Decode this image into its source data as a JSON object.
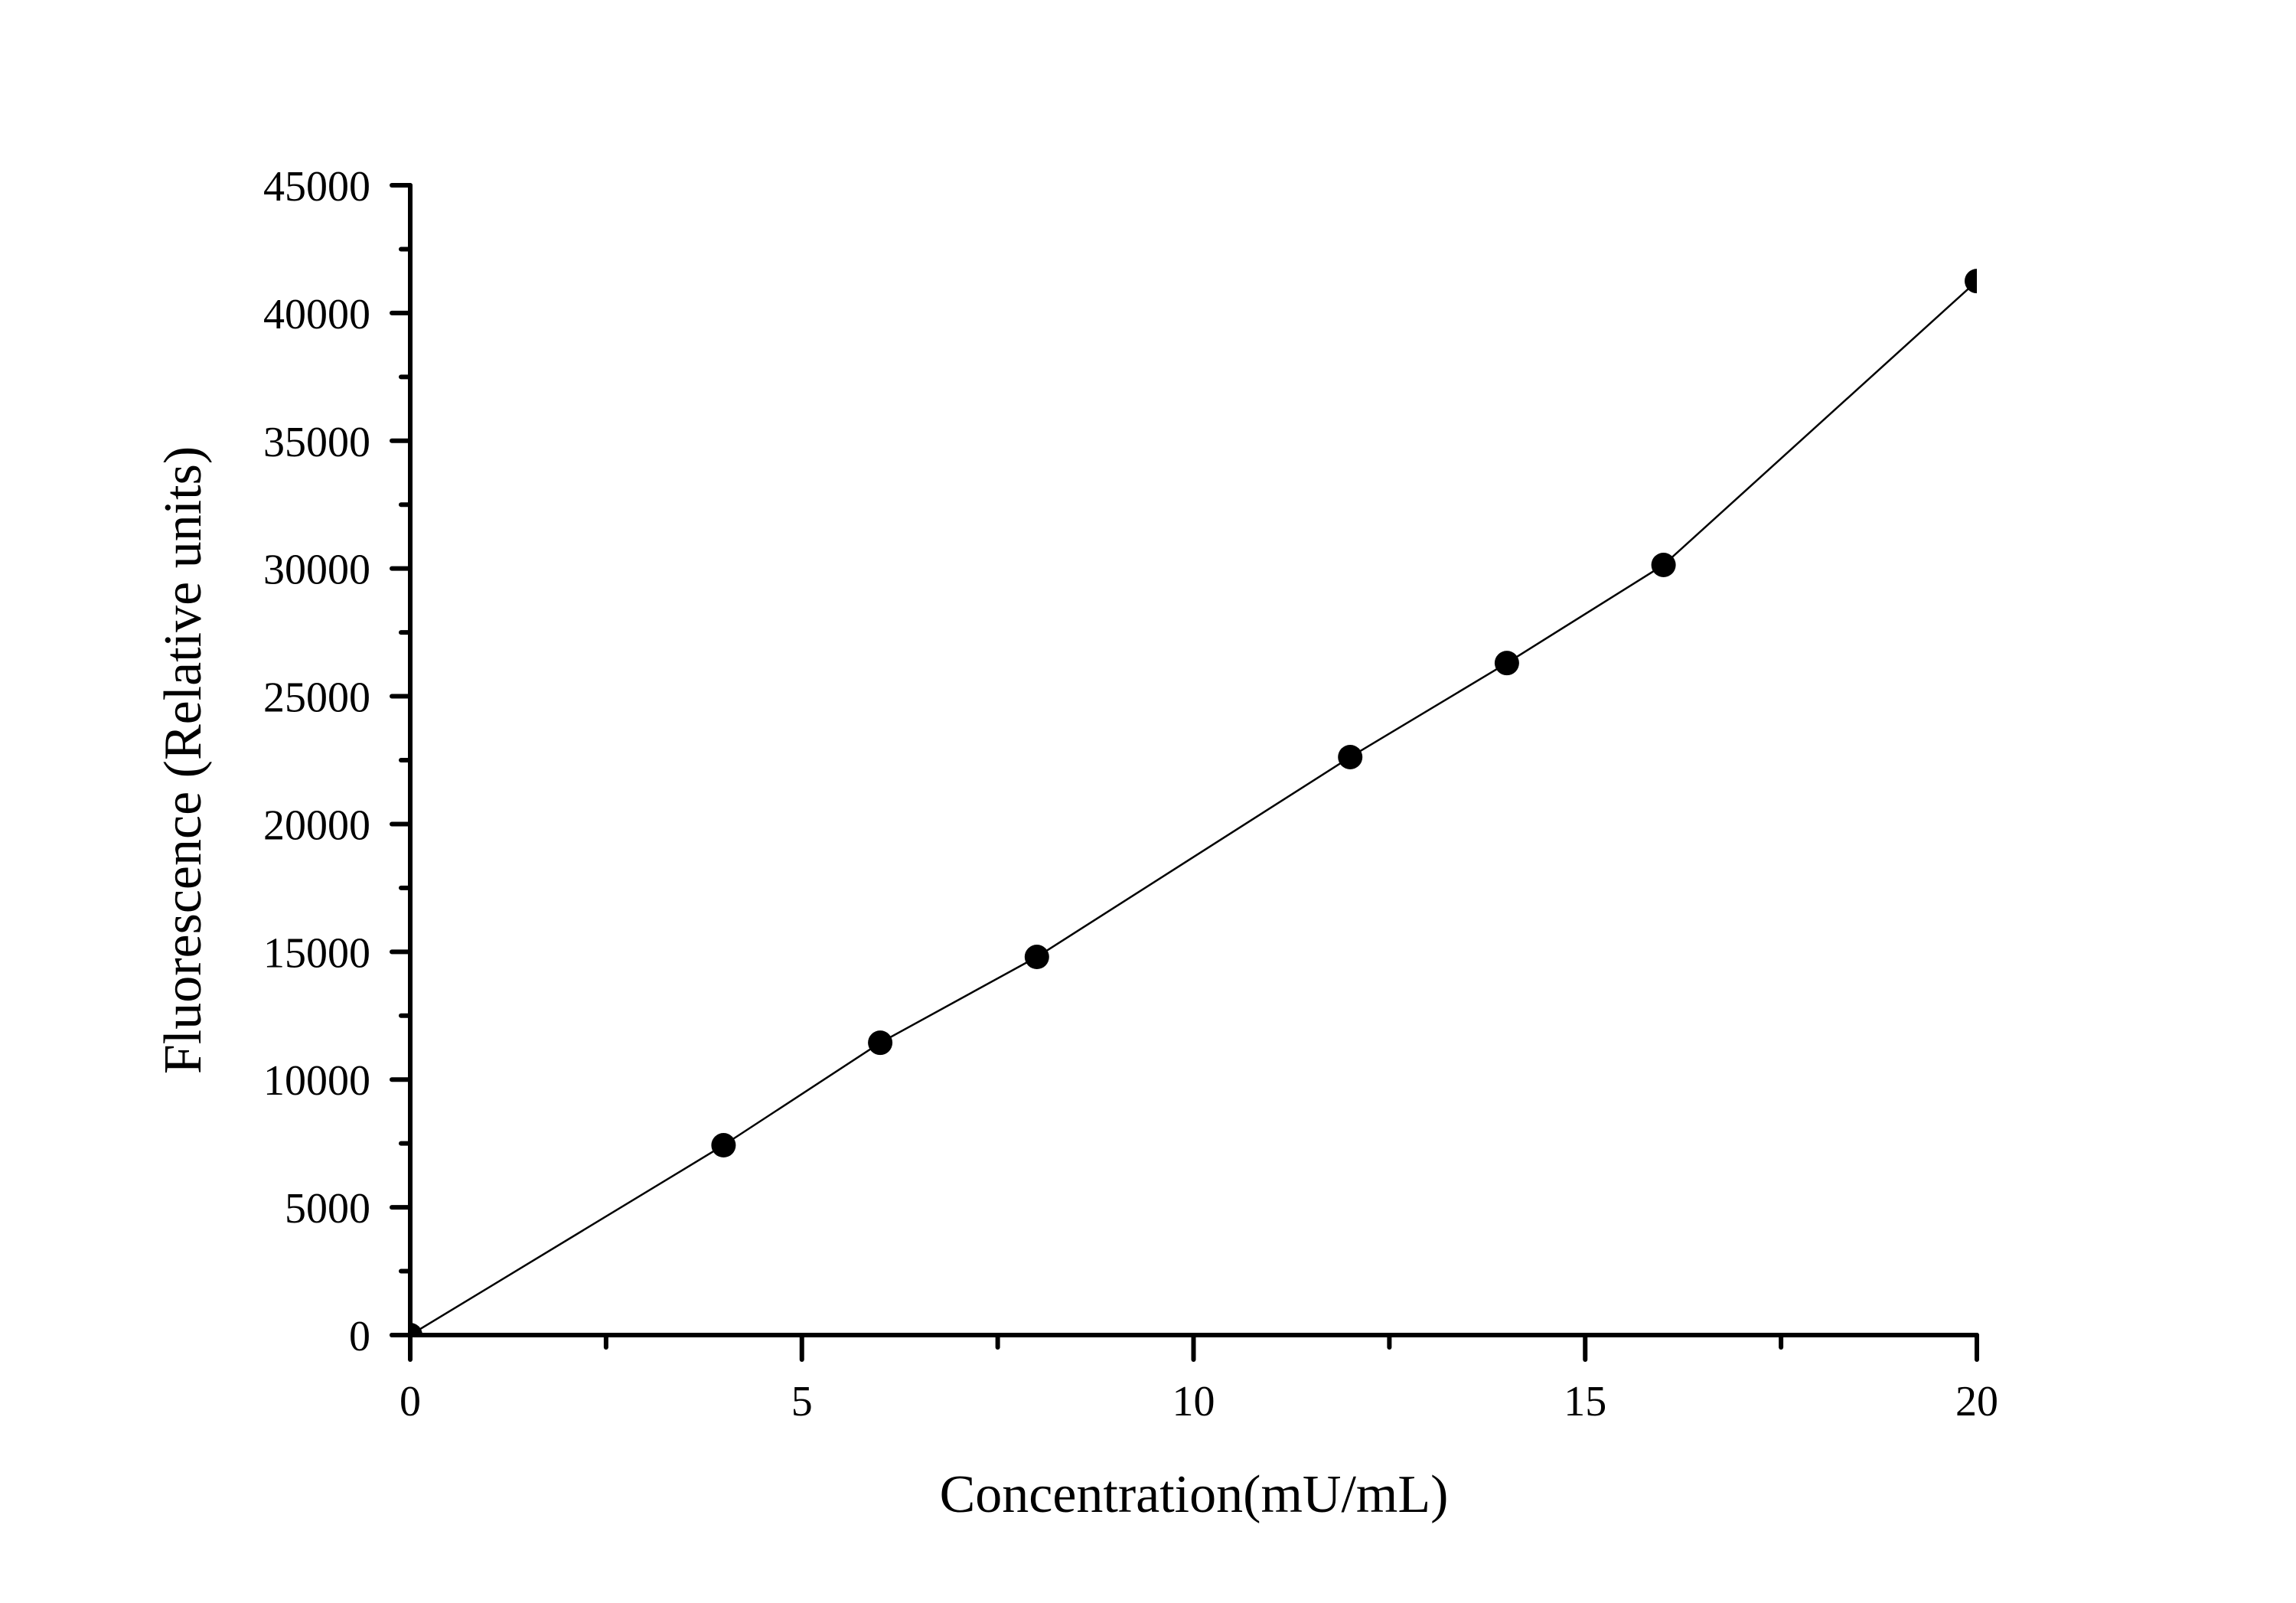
{
  "chart_data": {
    "type": "line",
    "title": "",
    "xlabel": "Concentration(mU/mL)",
    "ylabel": "Fluorescence (Relative units)",
    "xlim": [
      0,
      20
    ],
    "ylim": [
      0,
      45000
    ],
    "x_ticks": [
      0,
      5,
      10,
      15,
      20
    ],
    "x_tick_labels": [
      "0",
      "5",
      "10",
      "15",
      "20"
    ],
    "x_minor_ticks": [
      2.5,
      7.5,
      12.5,
      17.5
    ],
    "y_ticks": [
      0,
      5000,
      10000,
      15000,
      20000,
      25000,
      30000,
      35000,
      40000,
      45000
    ],
    "y_tick_labels": [
      "0",
      "5000",
      "10000",
      "15000",
      "20000",
      "25000",
      "30000",
      "35000",
      "40000",
      "45000"
    ],
    "y_minor_ticks": [
      2500,
      7500,
      12500,
      17500,
      22500,
      27500,
      32500,
      37500,
      42500
    ],
    "grid": false,
    "legend": null,
    "marker": "filled-circle",
    "x": [
      0,
      4,
      6,
      8,
      12,
      14,
      16,
      20
    ],
    "series": [
      {
        "name": "Fluorescence",
        "values": [
          0,
          7430,
          11440,
          14800,
          22620,
          26300,
          30140,
          41250
        ]
      }
    ]
  },
  "colors": {
    "background": "#ffffff",
    "axis": "#000000",
    "series": "#000000"
  }
}
